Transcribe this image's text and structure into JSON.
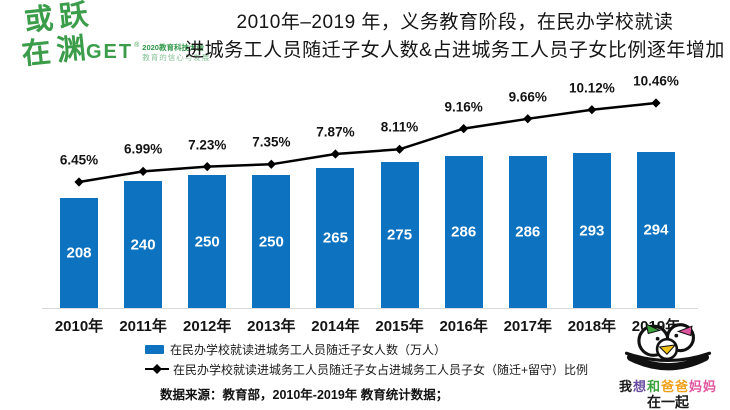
{
  "header": {
    "title_line1": "2010年–2019 年，义务教育阶段，在民办学校就读",
    "title_line2": "进城务工人员随迁子女人数&占进城务工人员子女比例逐年增加",
    "logo": {
      "brush_line1": "或跃",
      "brush_line2": "在渊",
      "get_text": "GET",
      "reg_mark": "®",
      "tagline1": "2020教育科技大会",
      "tagline2": "教育的信心与发展",
      "brand_green": "#3b9d4a"
    }
  },
  "chart_data": {
    "type": "bar",
    "combo": "bar+line",
    "categories": [
      "2010年",
      "2011年",
      "2012年",
      "2013年",
      "2014年",
      "2015年",
      "2016年",
      "2017年",
      "2018年",
      "2019年"
    ],
    "series": [
      {
        "name": "在民办学校就读进城务工人员随迁子女人数（万人）",
        "type": "bar",
        "color": "#0d73c0",
        "values": [
          208,
          240,
          250,
          250,
          265,
          275,
          286,
          286,
          293,
          294
        ]
      },
      {
        "name": "在民办学校就读进城务工人员随迁子女占进城务工人员子女（随迁+留守）比例",
        "type": "line",
        "color": "#000000",
        "marker": "diamond",
        "unit": "%",
        "values": [
          6.45,
          6.99,
          7.23,
          7.35,
          7.87,
          8.11,
          9.16,
          9.66,
          10.12,
          10.46
        ]
      }
    ],
    "bar_ylim": [
      0,
      310
    ],
    "line_ylim": [
      6,
      11
    ],
    "gridlines": false,
    "data_labels": true,
    "legend_position": "bottom-left"
  },
  "footer": {
    "source": "数据来源：教育部，2010年-2019年 教育统计数据；"
  },
  "badge": {
    "line1_segments": [
      {
        "t": "我",
        "c": "#1a1a1a"
      },
      {
        "t": "想",
        "c": "#6a4fa0"
      },
      {
        "t": "和",
        "c": "#3da13d"
      },
      {
        "t": "爸爸",
        "c": "#f0a11a"
      },
      {
        "t": "妈妈",
        "c": "#e0559f"
      }
    ],
    "line2": "在一起"
  }
}
